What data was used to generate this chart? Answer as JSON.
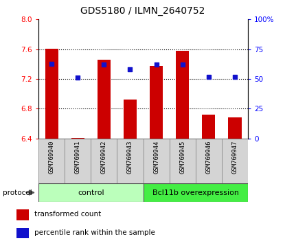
{
  "title": "GDS5180 / ILMN_2640752",
  "samples": [
    "GSM769940",
    "GSM769941",
    "GSM769942",
    "GSM769943",
    "GSM769944",
    "GSM769945",
    "GSM769946",
    "GSM769947"
  ],
  "transformed_counts": [
    7.61,
    6.41,
    7.46,
    6.92,
    7.38,
    7.58,
    6.72,
    6.68
  ],
  "percentile_ranks": [
    63,
    51,
    62,
    58,
    62,
    62,
    52,
    52
  ],
  "ylim_left": [
    6.4,
    8.0
  ],
  "ylim_right": [
    0,
    100
  ],
  "yticks_left": [
    6.4,
    6.8,
    7.2,
    7.6,
    8.0
  ],
  "yticks_right": [
    0,
    25,
    50,
    75,
    100
  ],
  "ytick_labels_right": [
    "0",
    "25",
    "50",
    "75",
    "100%"
  ],
  "bar_color": "#cc0000",
  "dot_color": "#1111cc",
  "bar_width": 0.5,
  "control_color": "#bbffbb",
  "bcl_color": "#44ee44",
  "sample_box_color": "#d4d4d4",
  "groups": [
    {
      "label": "control",
      "n": 4
    },
    {
      "label": "Bcl11b overexpression",
      "n": 4
    }
  ],
  "protocol_label": "protocol",
  "legend_items": [
    {
      "label": "transformed count",
      "color": "#cc0000",
      "marker": "s"
    },
    {
      "label": "percentile rank within the sample",
      "color": "#1111cc",
      "marker": "s"
    }
  ],
  "grid_dotted_at": [
    6.8,
    7.2,
    7.6
  ],
  "background_color": "#ffffff",
  "title_fontsize": 10,
  "tick_fontsize": 7.5,
  "label_fontsize": 6.5,
  "group_fontsize": 8
}
